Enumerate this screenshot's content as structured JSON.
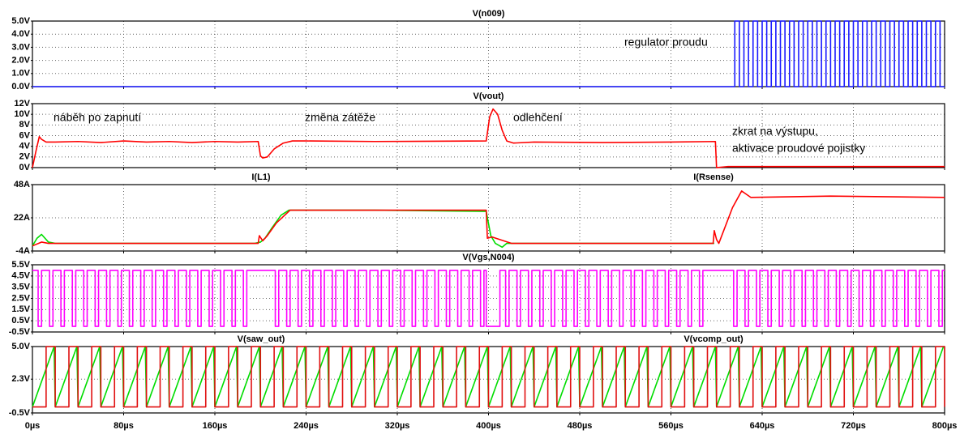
{
  "chart_data": [
    {
      "type": "line",
      "step": true,
      "xlim": [
        0,
        800
      ],
      "ylim": [
        0,
        5
      ],
      "yticks": [
        {
          "value": 0,
          "label": "0.0V"
        },
        {
          "value": 1,
          "label": "1.0V"
        },
        {
          "value": 2,
          "label": "2.0V"
        },
        {
          "value": 3,
          "label": "3.0V"
        },
        {
          "value": 4,
          "label": "4.0V"
        },
        {
          "value": 5,
          "label": "5.0V"
        }
      ],
      "grid": true,
      "annotations": [
        "regulator proudu"
      ],
      "series": [
        {
          "name": "V(n009)",
          "color": "#1a1aff",
          "x": [
            0,
            616,
            620,
            624,
            628,
            632,
            636,
            640,
            644,
            648,
            652,
            656,
            660,
            664,
            668,
            672,
            676,
            680,
            684,
            688,
            692,
            696,
            700,
            704,
            708,
            712,
            716,
            720,
            724,
            728,
            732,
            736,
            740,
            744,
            748,
            752,
            756,
            760,
            764,
            768,
            772,
            776,
            780,
            784,
            788,
            792,
            796,
            800
          ],
          "values": [
            0,
            5,
            0,
            5,
            0,
            5,
            0,
            5,
            0,
            5,
            0,
            5,
            0,
            5,
            0,
            5,
            0,
            5,
            0,
            5,
            0,
            5,
            0,
            5,
            0,
            5,
            0,
            5,
            0,
            5,
            0,
            5,
            0,
            5,
            0,
            5,
            0,
            5,
            0,
            5,
            0,
            5,
            0,
            5,
            0,
            5,
            0,
            0
          ]
        }
      ]
    },
    {
      "type": "line",
      "step": false,
      "xlim": [
        0,
        800
      ],
      "ylim": [
        0,
        12
      ],
      "yticks": [
        {
          "value": 0,
          "label": "0V"
        },
        {
          "value": 2,
          "label": "2V"
        },
        {
          "value": 4,
          "label": "4V"
        },
        {
          "value": 6,
          "label": "6V"
        },
        {
          "value": 8,
          "label": "8V"
        },
        {
          "value": 10,
          "label": "10V"
        },
        {
          "value": 12,
          "label": "12V"
        }
      ],
      "grid": true,
      "annotations": [
        "náběh po zapnutí",
        "změna zátěže",
        "odlehčení",
        "zkrat na výstupu,",
        "aktivace proudové pojistky"
      ],
      "series": [
        {
          "name": "V(vout)",
          "color": "#ff0000",
          "x": [
            0,
            3,
            6,
            8,
            12,
            20,
            40,
            60,
            80,
            100,
            120,
            140,
            160,
            180,
            198,
            200,
            202,
            206,
            212,
            220,
            228,
            240,
            300,
            398,
            401,
            404,
            408,
            412,
            416,
            422,
            440,
            500,
            560,
            599,
            600,
            610,
            800
          ],
          "values": [
            0,
            3,
            5.8,
            5.3,
            4.8,
            4.8,
            4.9,
            4.7,
            5,
            4.8,
            4.9,
            4.7,
            4.9,
            4.8,
            4.9,
            2.2,
            1.8,
            2,
            3.5,
            4.6,
            5,
            5,
            4.9,
            5,
            9.5,
            11,
            10,
            7,
            5,
            4.6,
            4.8,
            4.7,
            4.8,
            4.9,
            0,
            0.2,
            0.2
          ]
        }
      ]
    },
    {
      "type": "line",
      "step": false,
      "xlim": [
        0,
        800
      ],
      "ylim": [
        -4,
        48
      ],
      "yticks": [
        {
          "value": -4,
          "label": "-4A"
        },
        {
          "value": 22,
          "label": "22A"
        },
        {
          "value": 48,
          "label": "48A"
        }
      ],
      "grid": true,
      "series": [
        {
          "name": "I(L1)",
          "color": "#00dd00",
          "x": [
            0,
            4,
            8,
            14,
            20,
            100,
            195,
            200,
            204,
            210,
            218,
            225,
            300,
            398,
            402,
            406,
            412,
            416,
            500,
            598
          ],
          "values": [
            0,
            6,
            9,
            3,
            2,
            2,
            2,
            3,
            6,
            14,
            24,
            28,
            28,
            27,
            8,
            2,
            -1,
            2,
            2,
            2
          ]
        },
        {
          "name": "I(Rsense)",
          "color": "#ff0000",
          "x": [
            0,
            8,
            14,
            20,
            100,
            198,
            199,
            202,
            206,
            214,
            226,
            300,
            398,
            399,
            403,
            420,
            500,
            597,
            598,
            600,
            602,
            614,
            622,
            630,
            700,
            800
          ],
          "values": [
            0,
            3,
            2,
            2,
            2,
            2,
            8,
            4,
            8,
            18,
            28,
            28,
            28,
            6,
            7,
            2,
            2,
            2,
            12,
            5,
            2,
            30,
            43,
            38,
            39,
            38
          ]
        }
      ]
    },
    {
      "type": "line",
      "step": true,
      "xlim": [
        0,
        800
      ],
      "ylim": [
        -0.5,
        5.5
      ],
      "yticks": [
        {
          "value": -0.5,
          "label": "-0.5V"
        },
        {
          "value": 0.5,
          "label": "0.5V"
        },
        {
          "value": 1.5,
          "label": "1.5V"
        },
        {
          "value": 2.5,
          "label": "2.5V"
        },
        {
          "value": 3.5,
          "label": "3.5V"
        },
        {
          "value": 4.5,
          "label": "4.5V"
        },
        {
          "value": 5.5,
          "label": "5.5V"
        }
      ],
      "grid": true,
      "series": [
        {
          "name": "V(Vgs,N004)",
          "color": "#ff00ff",
          "x": [
            0,
            5,
            8,
            15,
            18,
            25,
            28,
            35,
            38,
            45,
            48,
            55,
            58,
            65,
            68,
            75,
            78,
            85,
            88,
            95,
            98,
            105,
            108,
            115,
            118,
            125,
            128,
            135,
            138,
            145,
            148,
            155,
            158,
            165,
            168,
            175,
            178,
            185,
            188,
            213,
            216,
            223,
            226,
            233,
            236,
            243,
            246,
            253,
            256,
            263,
            266,
            273,
            276,
            283,
            286,
            293,
            296,
            303,
            306,
            313,
            316,
            323,
            326,
            333,
            336,
            343,
            346,
            353,
            356,
            363,
            366,
            373,
            376,
            383,
            386,
            393,
            396,
            398,
            410,
            415,
            418,
            425,
            428,
            435,
            438,
            445,
            448,
            455,
            458,
            465,
            468,
            475,
            478,
            485,
            488,
            495,
            498,
            505,
            508,
            515,
            518,
            525,
            528,
            535,
            538,
            545,
            548,
            555,
            558,
            565,
            568,
            575,
            578,
            585,
            588,
            615,
            618,
            625,
            628,
            635,
            638,
            645,
            648,
            655,
            658,
            665,
            668,
            675,
            678,
            685,
            688,
            695,
            698,
            705,
            708,
            715,
            718,
            725,
            728,
            735,
            738,
            745,
            748,
            755,
            758,
            765,
            768,
            775,
            778,
            785,
            788,
            795,
            798,
            800
          ],
          "values": [
            5,
            0,
            5,
            0,
            5,
            0,
            5,
            0,
            5,
            0,
            5,
            0,
            5,
            0,
            5,
            0,
            5,
            0,
            5,
            0,
            5,
            0,
            5,
            0,
            5,
            0,
            5,
            0,
            5,
            0,
            5,
            0,
            5,
            0,
            5,
            0,
            5,
            0,
            5,
            0,
            5,
            0,
            5,
            0,
            5,
            0,
            5,
            0,
            5,
            0,
            5,
            0,
            5,
            0,
            5,
            0,
            5,
            0,
            5,
            0,
            5,
            0,
            5,
            0,
            5,
            0,
            5,
            0,
            5,
            0,
            5,
            0,
            5,
            0,
            5,
            0,
            5,
            0,
            5,
            0,
            5,
            0,
            5,
            0,
            5,
            0,
            5,
            0,
            5,
            0,
            5,
            0,
            5,
            0,
            5,
            0,
            5,
            0,
            5,
            0,
            5,
            0,
            5,
            0,
            5,
            0,
            5,
            0,
            5,
            0,
            5,
            0,
            5,
            0,
            5,
            0,
            5,
            0,
            5,
            0,
            5,
            0,
            5,
            0,
            5,
            0,
            5,
            0,
            5,
            0,
            5,
            0,
            5,
            0,
            5,
            0,
            5,
            0,
            5,
            0,
            5,
            0,
            5,
            0,
            5,
            0,
            5,
            0,
            5,
            0,
            5,
            0,
            5,
            5
          ]
        }
      ]
    },
    {
      "type": "line",
      "step": false,
      "xlim": [
        0,
        800
      ],
      "ylim": [
        -0.5,
        5
      ],
      "yticks": [
        {
          "value": -0.5,
          "label": "-0.5V"
        },
        {
          "value": 2.3,
          "label": "2.3V"
        },
        {
          "value": 5,
          "label": "5.0V"
        }
      ],
      "xticks": [
        {
          "value": 0,
          "label": "0µs"
        },
        {
          "value": 80,
          "label": "80µs"
        },
        {
          "value": 160,
          "label": "160µs"
        },
        {
          "value": 240,
          "label": "240µs"
        },
        {
          "value": 320,
          "label": "320µs"
        },
        {
          "value": 400,
          "label": "400µs"
        },
        {
          "value": 480,
          "label": "480µs"
        },
        {
          "value": 560,
          "label": "560µs"
        },
        {
          "value": 640,
          "label": "640µs"
        },
        {
          "value": 720,
          "label": "720µs"
        },
        {
          "value": 800,
          "label": "800µs"
        }
      ],
      "grid": true,
      "series": [
        {
          "name": "V(saw_out)",
          "color": "#00dd00",
          "step": false,
          "x": [
            0,
            19,
            20,
            39,
            40,
            59,
            60,
            79,
            80,
            99,
            100,
            119,
            120,
            139,
            140,
            159,
            160,
            179,
            180,
            199,
            200,
            219,
            220,
            239,
            240,
            259,
            260,
            279,
            280,
            299,
            300,
            319,
            320,
            339,
            340,
            359,
            360,
            379,
            380,
            399,
            400,
            419,
            420,
            439,
            440,
            459,
            460,
            479,
            480,
            499,
            500,
            519,
            520,
            539,
            540,
            559,
            560,
            579,
            580,
            599,
            600,
            619,
            620,
            639,
            640,
            659,
            660,
            679,
            680,
            699,
            700,
            719,
            720,
            739,
            740,
            759,
            760,
            779,
            780,
            799
          ],
          "values": [
            0,
            5,
            0,
            5,
            0,
            5,
            0,
            5,
            0,
            5,
            0,
            5,
            0,
            5,
            0,
            5,
            0,
            5,
            0,
            5,
            0,
            5,
            0,
            5,
            0,
            5,
            0,
            5,
            0,
            5,
            0,
            5,
            0,
            5,
            0,
            5,
            0,
            5,
            0,
            5,
            0,
            5,
            0,
            5,
            0,
            5,
            0,
            5,
            0,
            5,
            0,
            5,
            0,
            5,
            0,
            5,
            0,
            5,
            0,
            5,
            0,
            5,
            0,
            5,
            0,
            5,
            0,
            5,
            0,
            5,
            0,
            5,
            0,
            5,
            0,
            5,
            0,
            5,
            0,
            5
          ]
        },
        {
          "name": "V(vcomp_out)",
          "color": "#e01010",
          "step": true,
          "x": [
            0,
            12,
            20,
            32,
            40,
            52,
            60,
            72,
            80,
            92,
            100,
            112,
            120,
            132,
            140,
            152,
            160,
            172,
            180,
            192,
            200,
            212,
            220,
            232,
            240,
            252,
            260,
            272,
            280,
            292,
            300,
            312,
            320,
            332,
            340,
            352,
            360,
            372,
            380,
            392,
            400,
            412,
            420,
            432,
            440,
            452,
            460,
            472,
            480,
            492,
            500,
            512,
            520,
            532,
            540,
            552,
            560,
            572,
            580,
            592,
            600,
            612,
            620,
            632,
            640,
            652,
            660,
            672,
            680,
            692,
            700,
            712,
            720,
            732,
            740,
            752,
            760,
            772,
            780,
            792,
            800
          ],
          "values": [
            0,
            5,
            0,
            5,
            0,
            5,
            0,
            5,
            0,
            5,
            0,
            5,
            0,
            5,
            0,
            5,
            0,
            5,
            0,
            5,
            0,
            5,
            0,
            5,
            0,
            5,
            0,
            5,
            0,
            5,
            0,
            5,
            0,
            5,
            0,
            5,
            0,
            5,
            0,
            5,
            0,
            5,
            0,
            5,
            0,
            5,
            0,
            5,
            0,
            5,
            0,
            5,
            0,
            5,
            0,
            5,
            0,
            5,
            0,
            5,
            0,
            5,
            0,
            5,
            0,
            5,
            0,
            5,
            0,
            5,
            0,
            5,
            0,
            5,
            0,
            5,
            0,
            5,
            0,
            5,
            0
          ]
        }
      ]
    }
  ]
}
